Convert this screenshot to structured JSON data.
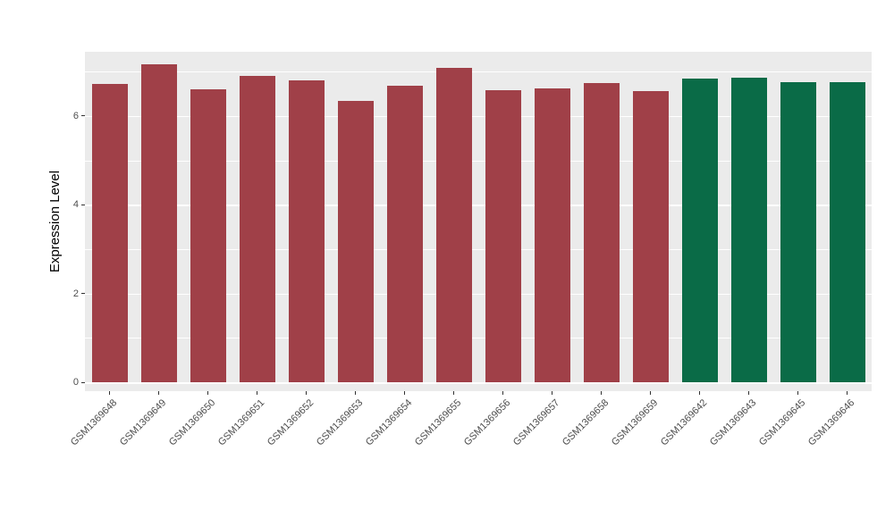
{
  "chart_data": {
    "type": "bar",
    "title": "",
    "xlabel": "",
    "ylabel": "Expression Level",
    "ylim": [
      0,
      7.45
    ],
    "yticks": [
      0,
      2,
      4,
      6
    ],
    "yticks_minor": [
      1,
      3,
      5,
      7
    ],
    "grid": "on",
    "legend": "none",
    "panel_background": "#EBEBEB",
    "grid_color": "#FFFFFF",
    "categories": [
      "GSM1369648",
      "GSM1369649",
      "GSM1369650",
      "GSM1369651",
      "GSM1369652",
      "GSM1369653",
      "GSM1369654",
      "GSM1369655",
      "GSM1369656",
      "GSM1369657",
      "GSM1369658",
      "GSM1369659",
      "GSM1369642",
      "GSM1369643",
      "GSM1369645",
      "GSM1369646"
    ],
    "values": [
      6.72,
      7.16,
      6.6,
      6.9,
      6.8,
      6.34,
      6.68,
      7.08,
      6.58,
      6.62,
      6.74,
      6.56,
      6.84,
      6.86,
      6.76,
      6.76
    ],
    "colors": [
      "#A04048",
      "#A04048",
      "#A04048",
      "#A04048",
      "#A04048",
      "#A04048",
      "#A04048",
      "#A04048",
      "#A04048",
      "#A04048",
      "#A04048",
      "#A04048",
      "#0A6B47",
      "#0A6B47",
      "#0A6B47",
      "#0A6B47"
    ]
  }
}
